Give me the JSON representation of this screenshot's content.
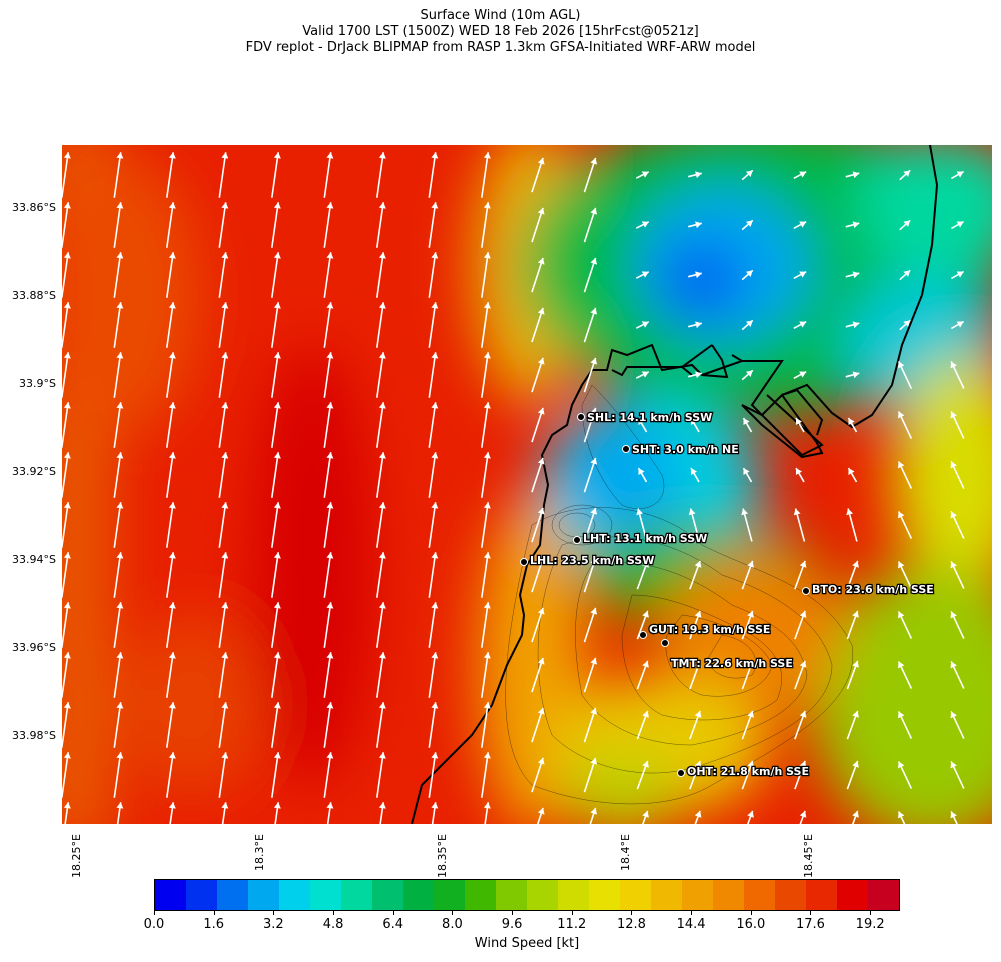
{
  "title": {
    "line1": "Surface Wind (10m AGL)",
    "line2": "Valid 1700 LST (1500Z) WED 18 Feb 2026 [15hrFcst@0521z]",
    "line3": "FDV replot - DrJack BLIPMAP from RASP 1.3km GFSA-Initiated WRF-ARW model"
  },
  "axes": {
    "lat_labels": [
      "33.86°S",
      "33.88°S",
      "33.9°S",
      "33.92°S",
      "33.94°S",
      "33.96°S",
      "33.98°S"
    ],
    "lon_labels": [
      "18.25°E",
      "18.3°E",
      "18.35°E",
      "18.4°E",
      "18.45°E"
    ]
  },
  "stations": [
    {
      "code": "SHL",
      "label": "SHL: 14.1 km/h SSW"
    },
    {
      "code": "SHT",
      "label": "SHT: 3.0 km/h NE"
    },
    {
      "code": "LHT",
      "label": "LHT: 13.1 km/h SSW"
    },
    {
      "code": "LHL",
      "label": "LHL: 23.5 km/h SSW"
    },
    {
      "code": "BTO",
      "label": "BTO: 23.6 km/h SSE"
    },
    {
      "code": "GUT",
      "label": "GUT: 19.3 km/h SSE"
    },
    {
      "code": "TMT",
      "label": "TMT: 22.6 km/h SSE"
    },
    {
      "code": "OHT",
      "label": "OHT: 21.8 km/h SSE"
    }
  ],
  "colorbar": {
    "label": "Wind Speed [kt]",
    "tick_labels": [
      "0.0",
      "1.6",
      "3.2",
      "4.8",
      "6.4",
      "8.0",
      "9.6",
      "11.2",
      "12.8",
      "14.4",
      "16.0",
      "17.6",
      "19.2"
    ],
    "colors": [
      "#0000f0",
      "#0030f0",
      "#0070f0",
      "#00a8f0",
      "#00d0ec",
      "#00e0d0",
      "#00d8a0",
      "#00c070",
      "#00b040",
      "#10b020",
      "#40b800",
      "#80c800",
      "#a8d400",
      "#d0dc00",
      "#e8e000",
      "#f0d000",
      "#f0b800",
      "#f0a000",
      "#f08800",
      "#f06800",
      "#e84800",
      "#e82800",
      "#e00000",
      "#c80020"
    ],
    "range": [
      0.0,
      20.0
    ]
  }
}
